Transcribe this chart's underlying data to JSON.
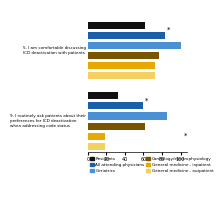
{
  "questions": [
    "5. I am comfortable discussing\nICD deactivation with patients",
    "9. I routinely ask patients about their\npreferences for ICD deactivation\nwhen addressing code status"
  ],
  "categories": [
    "Residents",
    "All attending physicians",
    "Geriatrics",
    "Cardiology/electrophysiology",
    "General medicine - inpatient",
    "General medicine - outpatient"
  ],
  "colors": [
    "#111111",
    "#1a5fa8",
    "#4a90d4",
    "#7a5500",
    "#e8a800",
    "#f5d060"
  ],
  "values_q5": [
    62,
    83,
    100,
    77,
    72,
    72
  ],
  "values_q9": [
    33,
    60,
    85,
    62,
    18,
    18
  ],
  "xticks": [
    0,
    20,
    40,
    60,
    80,
    100
  ]
}
